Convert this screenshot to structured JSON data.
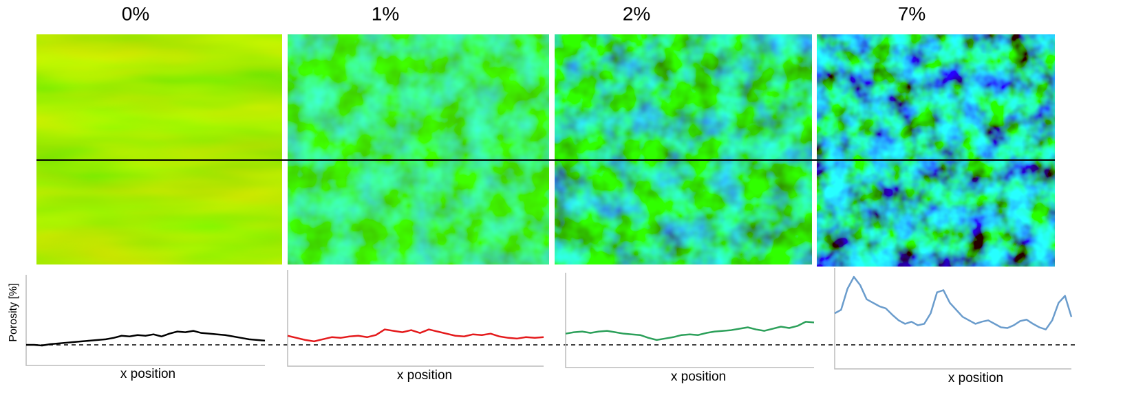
{
  "chart_data": [
    {
      "type": "line",
      "title": "0%",
      "x_label": "x position",
      "y_label": "Porosity [%]",
      "ylim": [
        0,
        10
      ],
      "series": [
        {
          "color": "#000000",
          "values": [
            0,
            0,
            -0.1,
            0.1,
            0.2,
            0.3,
            0.4,
            0.5,
            0.6,
            0.7,
            0.8,
            1.0,
            1.3,
            1.2,
            1.4,
            1.3,
            1.5,
            1.2,
            1.6,
            1.9,
            1.8,
            2.0,
            1.7,
            1.6,
            1.5,
            1.4,
            1.2,
            1.0,
            0.8,
            0.7,
            0.6
          ]
        }
      ]
    },
    {
      "type": "line",
      "title": "1%",
      "x_label": "x position",
      "ylim": [
        0,
        10
      ],
      "series": [
        {
          "color": "#e41a1c",
          "values": [
            1.3,
            1.0,
            0.7,
            0.5,
            0.8,
            1.1,
            1.0,
            1.2,
            1.3,
            1.1,
            1.4,
            2.2,
            2.0,
            1.8,
            2.1,
            1.7,
            2.2,
            1.9,
            1.6,
            1.3,
            1.2,
            1.5,
            1.4,
            1.6,
            1.2,
            1.0,
            0.9,
            1.1,
            1.0,
            1.1
          ]
        }
      ]
    },
    {
      "type": "line",
      "title": "2%",
      "x_label": "x position",
      "ylim": [
        0,
        10
      ],
      "series": [
        {
          "color": "#2ca05a",
          "values": [
            1.6,
            1.8,
            1.9,
            1.7,
            1.9,
            2.0,
            1.8,
            1.6,
            1.5,
            1.4,
            1.0,
            0.7,
            0.9,
            1.1,
            1.4,
            1.5,
            1.4,
            1.7,
            1.9,
            2.0,
            2.1,
            2.3,
            2.5,
            2.2,
            2.0,
            2.3,
            2.6,
            2.4,
            2.7,
            3.3,
            3.2
          ]
        }
      ]
    },
    {
      "type": "line",
      "title": "7%",
      "x_label": "x position",
      "ylim": [
        0,
        10
      ],
      "series": [
        {
          "color": "#6a9ccc",
          "values": [
            4.5,
            5.0,
            8.0,
            9.7,
            8.5,
            6.5,
            6.0,
            5.5,
            5.2,
            4.3,
            3.5,
            3.0,
            3.3,
            2.8,
            3.0,
            4.5,
            7.5,
            7.8,
            6.0,
            5.0,
            4.0,
            3.5,
            3.0,
            3.3,
            3.5,
            3.0,
            2.5,
            2.4,
            2.8,
            3.4,
            3.6,
            3.0,
            2.5,
            2.2,
            3.5,
            6.0,
            7.0,
            4.0
          ]
        }
      ]
    }
  ]
}
